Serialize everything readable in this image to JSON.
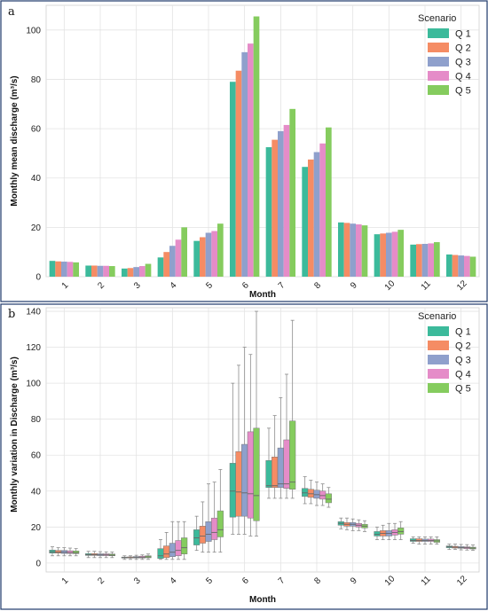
{
  "chart_data": [
    {
      "panel_letter": "a",
      "type": "bar",
      "xlabel": "Month",
      "ylabel": "Monthly mean discharge (m³/s)",
      "ylim": [
        0,
        110
      ],
      "yticks": [
        0,
        20,
        40,
        60,
        80,
        100
      ],
      "categories": [
        "1",
        "2",
        "3",
        "4",
        "5",
        "6",
        "7",
        "8",
        "9",
        "10",
        "11",
        "12"
      ],
      "legend": {
        "title": "Scenario",
        "position": "top-right"
      },
      "grid": true,
      "series": [
        {
          "name": "Q 1",
          "color": "#3cba9b",
          "values": [
            6.4,
            4.5,
            3.3,
            7.8,
            14.5,
            79,
            52.5,
            44.5,
            22,
            17.2,
            13,
            9
          ]
        },
        {
          "name": "Q 2",
          "color": "#f58c64",
          "values": [
            6.2,
            4.5,
            3.5,
            10,
            16,
            83.5,
            55.5,
            47.5,
            21.8,
            17.5,
            13.2,
            8.8
          ]
        },
        {
          "name": "Q 3",
          "color": "#8fa0cc",
          "values": [
            6.1,
            4.4,
            3.9,
            12.5,
            17.8,
            91,
            59,
            50.5,
            21.5,
            17.8,
            13.3,
            8.6
          ]
        },
        {
          "name": "Q 4",
          "color": "#e58cc8",
          "values": [
            6.0,
            4.4,
            4.3,
            15,
            18.5,
            94.5,
            61.5,
            54,
            21.2,
            18.2,
            13.5,
            8.4
          ]
        },
        {
          "name": "Q 5",
          "color": "#85cc5e",
          "values": [
            5.8,
            4.3,
            5.2,
            20,
            21.5,
            105.5,
            68,
            60.5,
            20.8,
            19,
            14,
            8.1
          ]
        }
      ]
    },
    {
      "panel_letter": "b",
      "type": "box",
      "xlabel": "Month",
      "ylabel": "Monthly variation in Discharge (m³/s)",
      "ylim": [
        -5,
        142
      ],
      "yticks": [
        0,
        20,
        40,
        60,
        80,
        100,
        120,
        140
      ],
      "categories": [
        "1",
        "2",
        "3",
        "4",
        "5",
        "6",
        "7",
        "8",
        "9",
        "10",
        "11",
        "12"
      ],
      "legend": {
        "title": "Scenario",
        "position": "top-right"
      },
      "grid": true,
      "series": [
        {
          "name": "Q 1",
          "color": "#3cba9b",
          "boxes": [
            {
              "min": 4,
              "q1": 5.5,
              "median": 6.2,
              "q3": 7.2,
              "max": 9
            },
            {
              "min": 3,
              "q1": 4.2,
              "median": 4.6,
              "q3": 5.2,
              "max": 6.5
            },
            {
              "min": 2,
              "q1": 2.8,
              "median": 3,
              "q3": 3.3,
              "max": 4
            },
            {
              "min": 2,
              "q1": 2.5,
              "median": 4,
              "q3": 8,
              "max": 13
            },
            {
              "min": 7,
              "q1": 10,
              "median": 14,
              "q3": 18.5,
              "max": 26
            },
            {
              "min": 16,
              "q1": 25.5,
              "median": 40,
              "q3": 55.5,
              "max": 100
            },
            {
              "min": 36,
              "q1": 42,
              "median": 43,
              "q3": 57,
              "max": 75
            },
            {
              "min": 33,
              "q1": 37,
              "median": 39,
              "q3": 41.5,
              "max": 48
            },
            {
              "min": 19,
              "q1": 21,
              "median": 22,
              "q3": 23,
              "max": 25
            },
            {
              "min": 13,
              "q1": 15,
              "median": 16,
              "q3": 17.5,
              "max": 20
            },
            {
              "min": 11,
              "q1": 12,
              "median": 12.5,
              "q3": 13.5,
              "max": 14.5
            },
            {
              "min": 7.5,
              "q1": 8.5,
              "median": 9,
              "q3": 9.5,
              "max": 10.5
            }
          ]
        },
        {
          "name": "Q 2",
          "color": "#f58c64",
          "boxes": [
            {
              "min": 4,
              "q1": 5.5,
              "median": 6,
              "q3": 7,
              "max": 8.5
            },
            {
              "min": 3,
              "q1": 4.2,
              "median": 4.6,
              "q3": 5.2,
              "max": 6.5
            },
            {
              "min": 2,
              "q1": 2.8,
              "median": 3,
              "q3": 3.4,
              "max": 4
            },
            {
              "min": 2,
              "q1": 3,
              "median": 5,
              "q3": 9.5,
              "max": 17
            },
            {
              "min": 6,
              "q1": 11,
              "median": 15,
              "q3": 20.5,
              "max": 34
            },
            {
              "min": 16,
              "q1": 26,
              "median": 39.5,
              "q3": 62,
              "max": 110
            },
            {
              "min": 36,
              "q1": 42,
              "median": 43,
              "q3": 59,
              "max": 82
            },
            {
              "min": 33,
              "q1": 36.5,
              "median": 38.5,
              "q3": 41,
              "max": 46
            },
            {
              "min": 18.5,
              "q1": 20.5,
              "median": 21.5,
              "q3": 22.5,
              "max": 25
            },
            {
              "min": 13,
              "q1": 15,
              "median": 16.5,
              "q3": 18,
              "max": 21
            },
            {
              "min": 10.5,
              "q1": 12,
              "median": 12.5,
              "q3": 13.5,
              "max": 14.5
            },
            {
              "min": 7.5,
              "q1": 8.3,
              "median": 8.8,
              "q3": 9.3,
              "max": 10.5
            }
          ]
        },
        {
          "name": "Q 3",
          "color": "#8fa0cc",
          "boxes": [
            {
              "min": 4,
              "q1": 5.3,
              "median": 6,
              "q3": 7,
              "max": 8.5
            },
            {
              "min": 3,
              "q1": 4.1,
              "median": 4.5,
              "q3": 5.1,
              "max": 6.3
            },
            {
              "min": 2,
              "q1": 2.8,
              "median": 3.1,
              "q3": 3.6,
              "max": 4.3
            },
            {
              "min": 2,
              "q1": 3.5,
              "median": 6,
              "q3": 11,
              "max": 23
            },
            {
              "min": 6,
              "q1": 12,
              "median": 16,
              "q3": 23,
              "max": 44
            },
            {
              "min": 16,
              "q1": 26,
              "median": 39,
              "q3": 66,
              "max": 120
            },
            {
              "min": 36,
              "q1": 42,
              "median": 44,
              "q3": 64,
              "max": 92
            },
            {
              "min": 32,
              "q1": 36,
              "median": 38,
              "q3": 40.5,
              "max": 45
            },
            {
              "min": 18,
              "q1": 20.5,
              "median": 21.5,
              "q3": 22.5,
              "max": 24.5
            },
            {
              "min": 13,
              "q1": 15,
              "median": 16.5,
              "q3": 18,
              "max": 22
            },
            {
              "min": 10.5,
              "q1": 12,
              "median": 12.5,
              "q3": 13.3,
              "max": 14.5
            },
            {
              "min": 7.3,
              "q1": 8.2,
              "median": 8.6,
              "q3": 9.1,
              "max": 10.3
            }
          ]
        },
        {
          "name": "Q 4",
          "color": "#e58cc8",
          "boxes": [
            {
              "min": 4,
              "q1": 5.3,
              "median": 5.8,
              "q3": 6.8,
              "max": 8.3
            },
            {
              "min": 3,
              "q1": 4.1,
              "median": 4.5,
              "q3": 5.1,
              "max": 6.2
            },
            {
              "min": 2,
              "q1": 2.8,
              "median": 3.2,
              "q3": 3.8,
              "max": 4.5
            },
            {
              "min": 2,
              "q1": 4,
              "median": 7,
              "q3": 12.5,
              "max": 23
            },
            {
              "min": 6,
              "q1": 13,
              "median": 17,
              "q3": 25,
              "max": 45
            },
            {
              "min": 15,
              "q1": 25,
              "median": 38.5,
              "q3": 73,
              "max": 116
            },
            {
              "min": 36,
              "q1": 41.5,
              "median": 44,
              "q3": 68.5,
              "max": 105
            },
            {
              "min": 32,
              "q1": 35.5,
              "median": 37.5,
              "q3": 40,
              "max": 44
            },
            {
              "min": 18,
              "q1": 20,
              "median": 21,
              "q3": 22,
              "max": 24
            },
            {
              "min": 13,
              "q1": 15.5,
              "median": 17,
              "q3": 18.5,
              "max": 22
            },
            {
              "min": 10.5,
              "q1": 12,
              "median": 12.5,
              "q3": 13.3,
              "max": 14.5
            },
            {
              "min": 7.2,
              "q1": 8,
              "median": 8.5,
              "q3": 9,
              "max": 10.2
            }
          ]
        },
        {
          "name": "Q 5",
          "color": "#85cc5e",
          "boxes": [
            {
              "min": 4,
              "q1": 5.2,
              "median": 5.7,
              "q3": 6.7,
              "max": 8
            },
            {
              "min": 3,
              "q1": 4,
              "median": 4.4,
              "q3": 5,
              "max": 6.1
            },
            {
              "min": 2,
              "q1": 2.9,
              "median": 3.4,
              "q3": 4,
              "max": 5
            },
            {
              "min": 2,
              "q1": 5,
              "median": 8.5,
              "q3": 14,
              "max": 23
            },
            {
              "min": 6,
              "q1": 14.5,
              "median": 18.5,
              "q3": 29,
              "max": 52
            },
            {
              "min": 15,
              "q1": 23.5,
              "median": 37.5,
              "q3": 75,
              "max": 140
            },
            {
              "min": 36,
              "q1": 41,
              "median": 45,
              "q3": 79,
              "max": 135
            },
            {
              "min": 31,
              "q1": 33.5,
              "median": 35.5,
              "q3": 38.5,
              "max": 42
            },
            {
              "min": 17.5,
              "q1": 19.5,
              "median": 20.5,
              "q3": 21.5,
              "max": 23.5
            },
            {
              "min": 13,
              "q1": 16,
              "median": 17.5,
              "q3": 19.5,
              "max": 23
            },
            {
              "min": 10.5,
              "q1": 11.5,
              "median": 12.3,
              "q3": 13,
              "max": 14.5
            },
            {
              "min": 7,
              "q1": 7.8,
              "median": 8.3,
              "q3": 8.8,
              "max": 10
            }
          ]
        }
      ]
    }
  ]
}
